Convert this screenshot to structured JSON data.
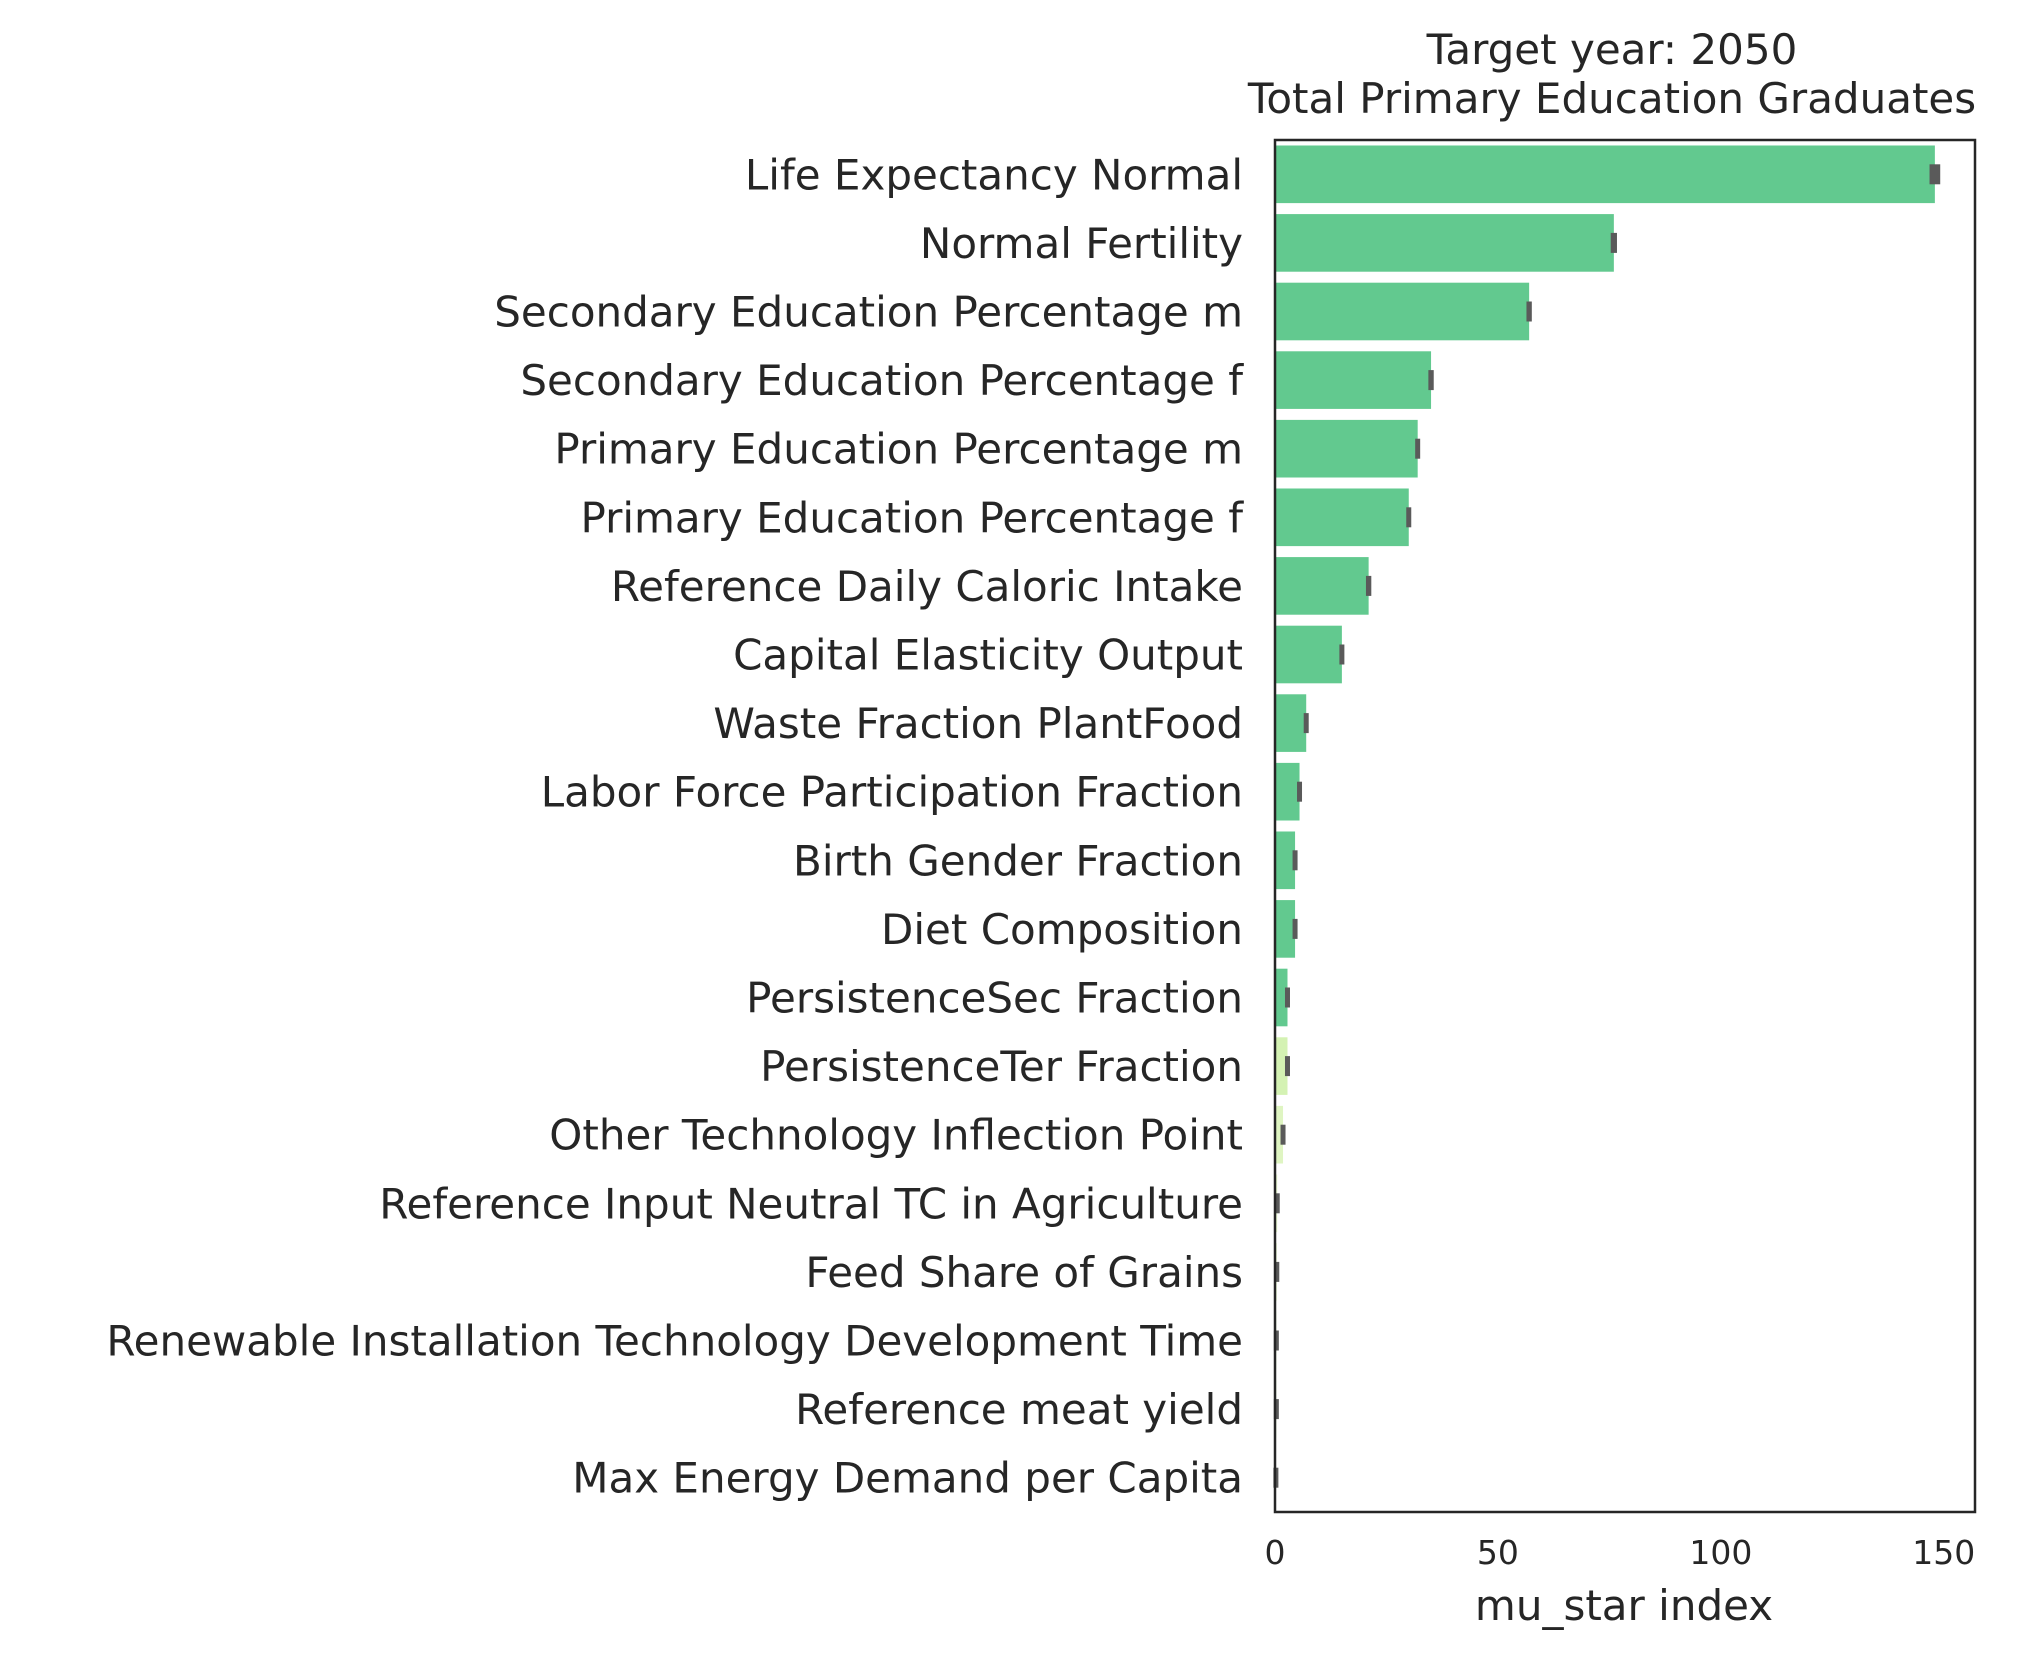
{
  "chart_data": {
    "type": "bar",
    "orientation": "horizontal",
    "title": "Target year: 2050",
    "subtitle": "Total Primary Education Graduates",
    "xlabel": "mu_star index",
    "ylabel": "",
    "xlim": [
      0,
      157
    ],
    "xticks": [
      0,
      50,
      100,
      150
    ],
    "grid": false,
    "categories": [
      "Life Expectancy Normal",
      "Normal Fertility",
      "Secondary Education Percentage m",
      "Secondary Education Percentage f",
      "Primary Education Percentage m",
      "Primary Education Percentage f",
      "Reference Daily Caloric Intake",
      "Capital Elasticity Output",
      "Waste Fraction PlantFood",
      "Labor Force Participation Fraction",
      "Birth Gender Fraction",
      "Diet Composition",
      "PersistenceSec Fraction",
      "PersistenceTer Fraction",
      "Other Technology Inflection Point",
      "Reference Input Neutral TC in Agriculture",
      "Feed Share of Grains",
      "Renewable Installation Technology Development Time",
      "Reference meat yield",
      "Max Energy Demand per Capita"
    ],
    "values": [
      148,
      76,
      57,
      35,
      32,
      30,
      21,
      15,
      7,
      5.5,
      4.5,
      4.5,
      2.8,
      2.8,
      1.8,
      0.5,
      0.4,
      0.3,
      0.3,
      0.2
    ],
    "errors": [
      1.2,
      0.7,
      0.6,
      0.6,
      0.5,
      0.5,
      0.6,
      0.5,
      0.4,
      0.4,
      0.4,
      0.4,
      0.4,
      0.4,
      0.3,
      0.3,
      0.3,
      0.3,
      0.3,
      0.3
    ],
    "bar_colors": [
      "#62c98f",
      "#62c98f",
      "#62c98f",
      "#62c98f",
      "#62c98f",
      "#62c98f",
      "#62c98f",
      "#62c98f",
      "#62c98f",
      "#62c98f",
      "#62c98f",
      "#62c98f",
      "#62c98f",
      "#d4f2b3",
      "#dff5c2",
      "#e8f8d2",
      "#e8f8d2",
      "#e8f8d2",
      "#e8f8d2",
      "#e8f8d2"
    ],
    "errorbar_color": "#5a5a5a"
  }
}
